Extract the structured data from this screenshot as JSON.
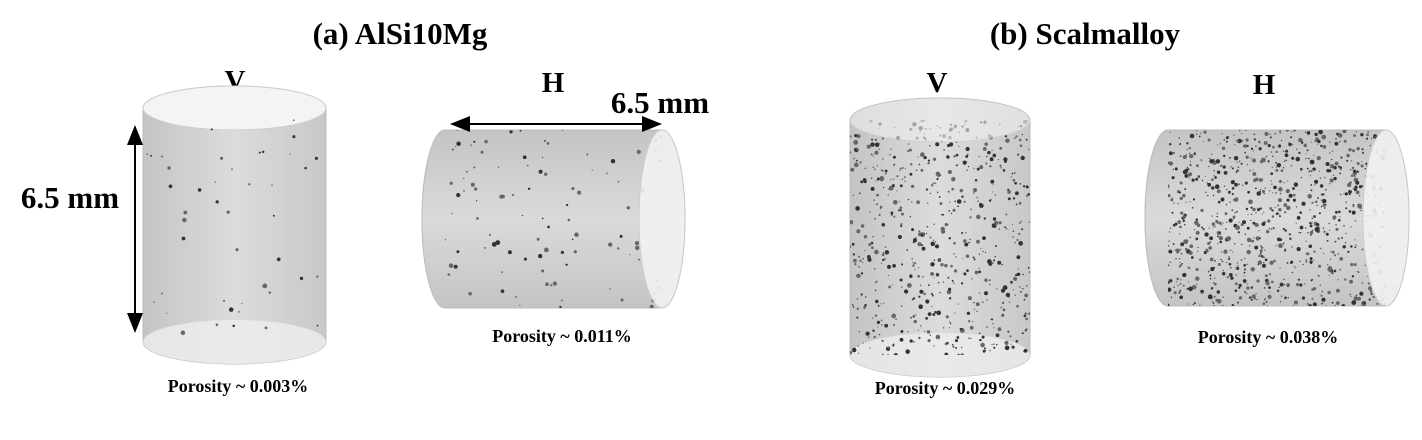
{
  "panels": [
    {
      "title": "(a) AlSi10Mg",
      "specimens": [
        {
          "orientation": "V",
          "porosity": "Porosity ~ 0.003%"
        },
        {
          "orientation": "H",
          "porosity": "Porosity ~ 0.011%"
        }
      ]
    },
    {
      "title": "(b) Scalmalloy",
      "specimens": [
        {
          "orientation": "V",
          "porosity": "Porosity ~ 0.029%"
        },
        {
          "orientation": "H",
          "porosity": "Porosity ~ 0.038%"
        }
      ]
    }
  ],
  "dimension_labels": [
    "6.5 mm",
    "6.5 mm"
  ]
}
